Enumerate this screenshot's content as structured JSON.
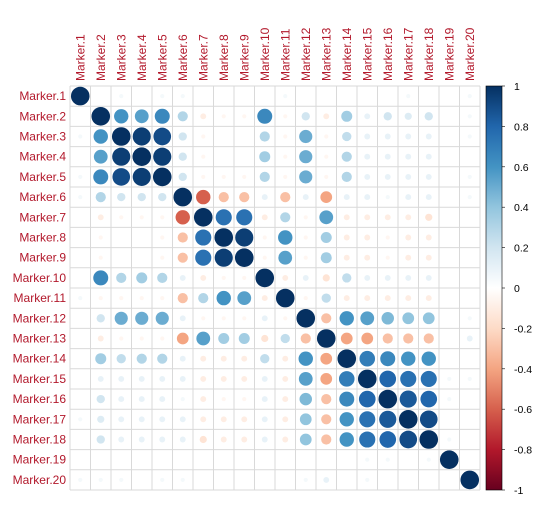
{
  "chart_data": {
    "type": "heatmap",
    "style": "corrplot-circle",
    "title": "",
    "grid": true,
    "legend": "right",
    "color_scale": {
      "range": [
        -1,
        1
      ],
      "ticks": [
        "1",
        "0.8",
        "0.6",
        "0.4",
        "0.2",
        "0",
        "-0.2",
        "-0.4",
        "-0.6",
        "-0.8",
        "-1"
      ],
      "colors": {
        "neg": "#67001F",
        "mid": "#FFFFFF",
        "pos": "#053061"
      }
    },
    "labels": [
      "Marker.1",
      "Marker.2",
      "Marker.3",
      "Marker.4",
      "Marker.5",
      "Marker.6",
      "Marker.7",
      "Marker.8",
      "Marker.9",
      "Marker.10",
      "Marker.11",
      "Marker.12",
      "Marker.13",
      "Marker.14",
      "Marker.15",
      "Marker.16",
      "Marker.17",
      "Marker.18",
      "Marker.19",
      "Marker.20"
    ],
    "matrix": [
      [
        1,
        0,
        0.05,
        0,
        0.05,
        0.05,
        0,
        0,
        0,
        0,
        0.05,
        0,
        0,
        0,
        0,
        0,
        0.05,
        0,
        0,
        0.05
      ],
      [
        0,
        1,
        0.6,
        0.55,
        0.65,
        0.3,
        -0.1,
        -0.05,
        -0.05,
        0.65,
        -0.05,
        0.2,
        -0.1,
        0.35,
        0.1,
        0.2,
        0.15,
        0.2,
        0,
        0.05
      ],
      [
        0.05,
        0.6,
        1,
        0.95,
        0.9,
        0.2,
        -0.05,
        0,
        0,
        0.3,
        -0.05,
        0.5,
        -0.05,
        0.25,
        0.1,
        0.1,
        0.1,
        0.1,
        0,
        0.05
      ],
      [
        0,
        0.55,
        0.95,
        1,
        0.95,
        0.2,
        -0.05,
        0,
        0,
        0.35,
        -0.05,
        0.5,
        -0.05,
        0.3,
        0.1,
        0.1,
        0.1,
        0.1,
        0,
        0
      ],
      [
        0.05,
        0.65,
        0.9,
        0.95,
        1,
        0.2,
        -0.05,
        -0.05,
        -0.05,
        0.3,
        -0.05,
        0.5,
        -0.05,
        0.3,
        0.1,
        0.1,
        0.1,
        0.1,
        0,
        0.05
      ],
      [
        0.05,
        0.3,
        0.2,
        0.2,
        0.2,
        1,
        -0.6,
        -0.3,
        -0.3,
        0.1,
        -0.3,
        0.1,
        -0.4,
        0.1,
        0.1,
        0.05,
        0.1,
        0.1,
        0,
        0.05
      ],
      [
        0,
        -0.1,
        -0.05,
        -0.05,
        -0.05,
        -0.6,
        1,
        0.75,
        0.75,
        -0.1,
        0.3,
        -0.05,
        0.55,
        -0.1,
        -0.1,
        -0.1,
        -0.1,
        -0.15,
        0,
        0
      ],
      [
        0,
        -0.05,
        0,
        0,
        -0.05,
        -0.3,
        0.75,
        1,
        0.95,
        -0.05,
        0.6,
        -0.05,
        0.35,
        -0.1,
        -0.1,
        -0.05,
        -0.1,
        -0.1,
        0,
        0
      ],
      [
        0,
        -0.05,
        0,
        0,
        -0.05,
        -0.3,
        0.75,
        0.95,
        1,
        -0.05,
        0.55,
        -0.05,
        0.35,
        -0.1,
        -0.1,
        -0.05,
        -0.1,
        -0.1,
        0,
        0
      ],
      [
        0,
        0.65,
        0.3,
        0.35,
        0.3,
        0.1,
        -0.1,
        -0.05,
        -0.05,
        1,
        -0.1,
        0.1,
        -0.15,
        0.25,
        0.1,
        0.1,
        0.1,
        0.1,
        0,
        0
      ],
      [
        0.05,
        -0.05,
        -0.05,
        -0.05,
        -0.05,
        -0.3,
        0.3,
        0.6,
        0.55,
        -0.1,
        1,
        -0.05,
        0.25,
        -0.1,
        -0.1,
        -0.1,
        -0.1,
        -0.1,
        0,
        0
      ],
      [
        0,
        0.2,
        0.5,
        0.5,
        0.5,
        0.1,
        -0.05,
        -0.05,
        -0.05,
        0.1,
        -0.05,
        1,
        -0.3,
        0.6,
        0.55,
        0.45,
        0.4,
        0.4,
        0,
        0.05
      ],
      [
        0,
        -0.1,
        -0.05,
        -0.05,
        -0.05,
        -0.4,
        0.55,
        0.35,
        0.35,
        -0.15,
        0.25,
        -0.3,
        1,
        -0.4,
        -0.4,
        -0.3,
        -0.3,
        -0.3,
        0,
        0.1
      ],
      [
        0,
        0.35,
        0.25,
        0.3,
        0.3,
        0.1,
        -0.1,
        -0.1,
        -0.1,
        0.25,
        -0.1,
        0.6,
        -0.4,
        1,
        0.7,
        0.65,
        0.6,
        0.6,
        0,
        0
      ],
      [
        0,
        0.1,
        0.1,
        0.1,
        0.1,
        0.1,
        -0.1,
        -0.1,
        -0.1,
        0.1,
        -0.1,
        0.55,
        -0.4,
        0.7,
        1,
        0.8,
        0.75,
        0.75,
        0.05,
        0.05
      ],
      [
        0,
        0.2,
        0.1,
        0.1,
        0.1,
        0.05,
        -0.1,
        -0.05,
        -0.05,
        0.1,
        -0.1,
        0.45,
        -0.3,
        0.65,
        0.8,
        1,
        0.85,
        0.8,
        0.05,
        0
      ],
      [
        0.05,
        0.15,
        0.1,
        0.1,
        0.1,
        0.1,
        -0.1,
        -0.1,
        -0.1,
        0.1,
        -0.1,
        0.4,
        -0.3,
        0.6,
        0.75,
        0.85,
        1,
        0.9,
        0,
        0
      ],
      [
        0,
        0.2,
        0.1,
        0.1,
        0.1,
        0.1,
        -0.15,
        -0.1,
        -0.1,
        0.1,
        -0.1,
        0.4,
        -0.3,
        0.6,
        0.75,
        0.8,
        0.9,
        1,
        0.05,
        0
      ],
      [
        0,
        0,
        0,
        0,
        0,
        0,
        0,
        0,
        0,
        0,
        0,
        0,
        0,
        0,
        0.05,
        0.05,
        0,
        0.05,
        1,
        0
      ],
      [
        0.05,
        0.05,
        0.05,
        0,
        0.05,
        0.05,
        0,
        0,
        0,
        0,
        0,
        0.05,
        0.1,
        0,
        0.05,
        0,
        0,
        0,
        0,
        1
      ]
    ]
  }
}
